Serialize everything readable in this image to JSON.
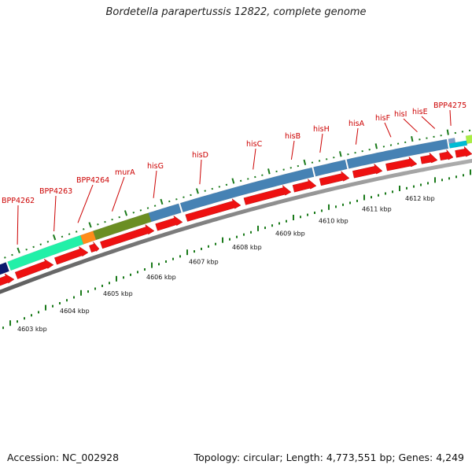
{
  "title": "Bordetella parapertussis 12822, complete genome",
  "footer": {
    "accession": "Accession: NC_002928",
    "summary": "Topology: circular; Length: 4,773,551 bp; Genes: 4,249"
  },
  "colors": {
    "gene_label": "#cc0000",
    "cds_arrow": "#ee1111",
    "backbone": "#8a8a8a",
    "tick": "#1a7a1a"
  },
  "kbp_labels": [
    "4603 kbp",
    "4604 kbp",
    "4605 kbp",
    "4606 kbp",
    "4607 kbp",
    "4608 kbp",
    "4609 kbp",
    "4610 kbp",
    "4611 kbp",
    "4612 kbp"
  ],
  "gene_labels": [
    "BPP4262",
    "BPP4263",
    "BPP4264",
    "murA",
    "hisG",
    "hisD",
    "hisC",
    "hisB",
    "hisH",
    "hisA",
    "hisF",
    "hisI",
    "hisE",
    "BPP4275"
  ],
  "feature_blocks": [
    {
      "color": "#0c1a6e"
    },
    {
      "color": "#22f0a8"
    },
    {
      "color": "#ff8c1a"
    },
    {
      "color": "#6b8e23"
    },
    {
      "color": "#4682b4"
    },
    {
      "color": "#4682b4"
    },
    {
      "color": "#4682b4"
    },
    {
      "color": "#4682b4"
    },
    {
      "color": "#7a9cc8"
    },
    {
      "color": "#00bcd4"
    },
    {
      "color": "#aaee44"
    }
  ]
}
